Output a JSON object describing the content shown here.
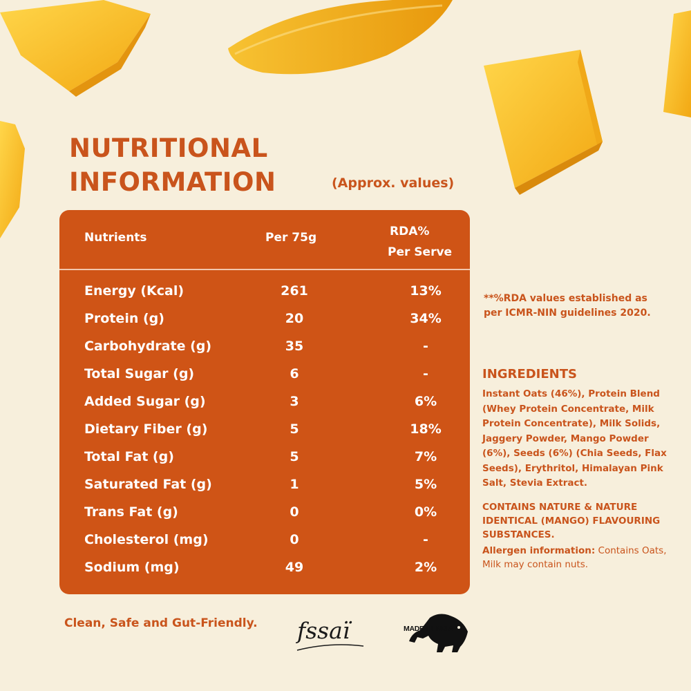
{
  "title_lines": [
    "NUTRITIONAL",
    "INFORMATION"
  ],
  "subtitle": "(Approx. values)",
  "table": {
    "headers": {
      "nutrients": "Nutrients",
      "per": "Per 75g",
      "rda_line1": "RDA%",
      "rda_line2": "Per Serve"
    },
    "rows": [
      {
        "nutrient": "Energy (Kcal)",
        "per": "261",
        "rda": "13%"
      },
      {
        "nutrient": "Protein (g)",
        "per": "20",
        "rda": "34%"
      },
      {
        "nutrient": "Carbohydrate (g)",
        "per": "35",
        "rda": "-"
      },
      {
        "nutrient": "Total Sugar (g)",
        "per": "6",
        "rda": "-"
      },
      {
        "nutrient": "Added Sugar (g)",
        "per": "3",
        "rda": "6%"
      },
      {
        "nutrient": "Dietary Fiber (g)",
        "per": "5",
        "rda": "18%"
      },
      {
        "nutrient": "Total Fat (g)",
        "per": "5",
        "rda": "7%"
      },
      {
        "nutrient": "Saturated Fat (g)",
        "per": "1",
        "rda": "5%"
      },
      {
        "nutrient": "Trans Fat (g)",
        "per": "0",
        "rda": "0%"
      },
      {
        "nutrient": "Cholesterol (mg)",
        "per": "0",
        "rda": "-"
      },
      {
        "nutrient": "Sodium (mg)",
        "per": "49",
        "rda": "2%"
      }
    ]
  },
  "rda_note": "**%RDA values established as per ICMR-NIN guidelines 2020.",
  "ingredients": {
    "title": "INGREDIENTS",
    "text": "Instant Oats (46%), Protein Blend (Whey Protein Concentrate, Milk Protein Concentrate), Milk Solids, Jaggery Powder, Mango Powder (6%), Seeds (6%) (Chia Seeds, Flax Seeds), Erythritol, Himalayan Pink Salt, Stevia Extract.",
    "contains": "CONTAINS NATURE & NATURE IDENTICAL (MANGO) FLAVOURING SUBSTANCES.",
    "allergen_label": "Allergen information:",
    "allergen_text": " Contains Oats, Milk may contain nuts."
  },
  "footer": {
    "tagline": "Clean, Safe and Gut-Friendly.",
    "fssai_logo": "fssaï",
    "made_in_india": "MADE IN INDIA"
  },
  "colors": {
    "accent": "#c9541c",
    "table_bg": "#cf5416",
    "background": "#f7efdc"
  }
}
